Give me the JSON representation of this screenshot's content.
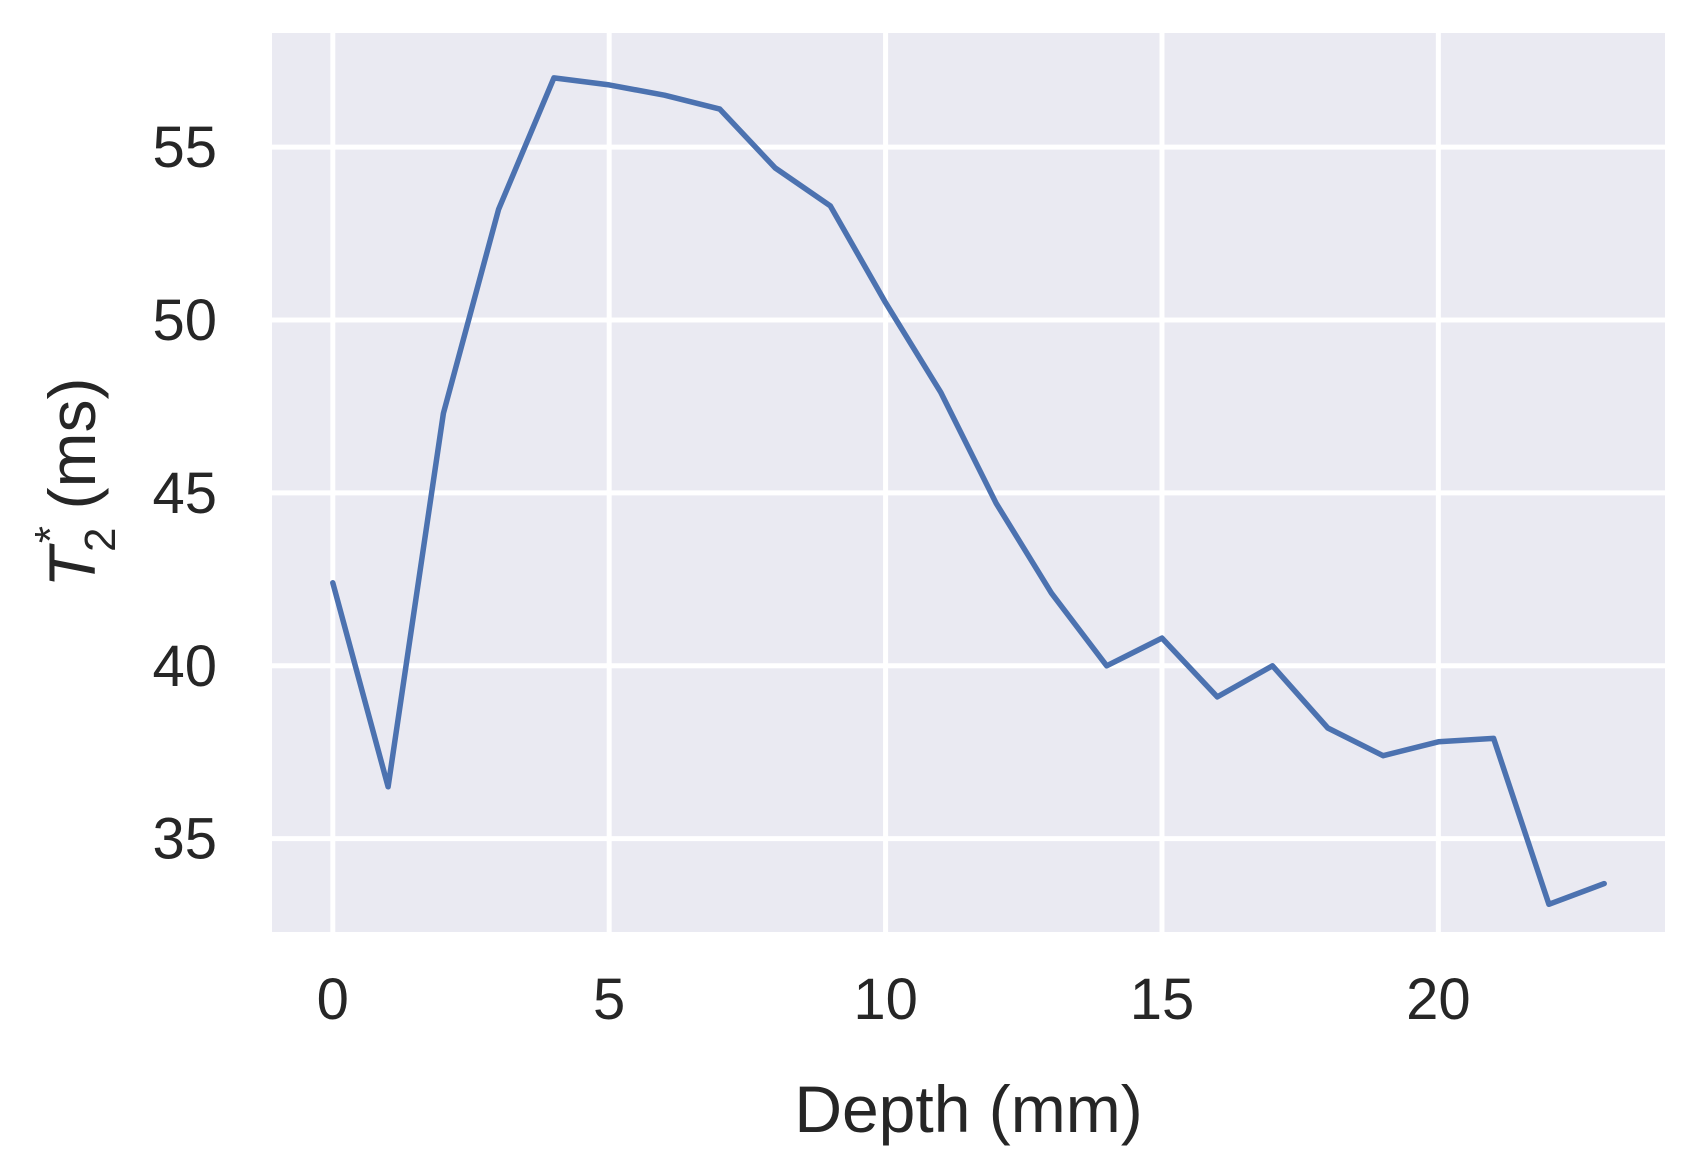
{
  "chart_data": {
    "type": "line",
    "title": "",
    "xlabel": "Depth (mm)",
    "ylabel": {
      "symbol": "T",
      "subscript": "2",
      "superscript": "*",
      "unit": "(ms)"
    },
    "xlim": [
      -1.1,
      24.1
    ],
    "ylim": [
      32.3,
      58.3
    ],
    "xticks": [
      0,
      5,
      10,
      15,
      20
    ],
    "yticks": [
      35,
      40,
      45,
      50,
      55
    ],
    "grid": true,
    "colors": {
      "background": "#EAEAF2",
      "grid": "#FFFFFF",
      "line": "#4C72B0",
      "text": "#262626"
    },
    "series": [
      {
        "x": [
          0,
          1,
          2,
          3,
          4,
          5,
          6,
          7,
          8,
          9,
          10,
          11,
          12,
          13,
          14,
          15,
          16,
          17,
          18,
          19,
          20,
          21,
          22,
          23
        ],
        "y": [
          42.4,
          36.5,
          47.3,
          53.2,
          57.0,
          56.8,
          56.5,
          56.1,
          54.4,
          53.3,
          50.5,
          47.9,
          44.7,
          42.1,
          40.0,
          40.8,
          39.1,
          40.0,
          38.2,
          37.4,
          37.8,
          37.9,
          33.1,
          33.7
        ]
      }
    ]
  }
}
